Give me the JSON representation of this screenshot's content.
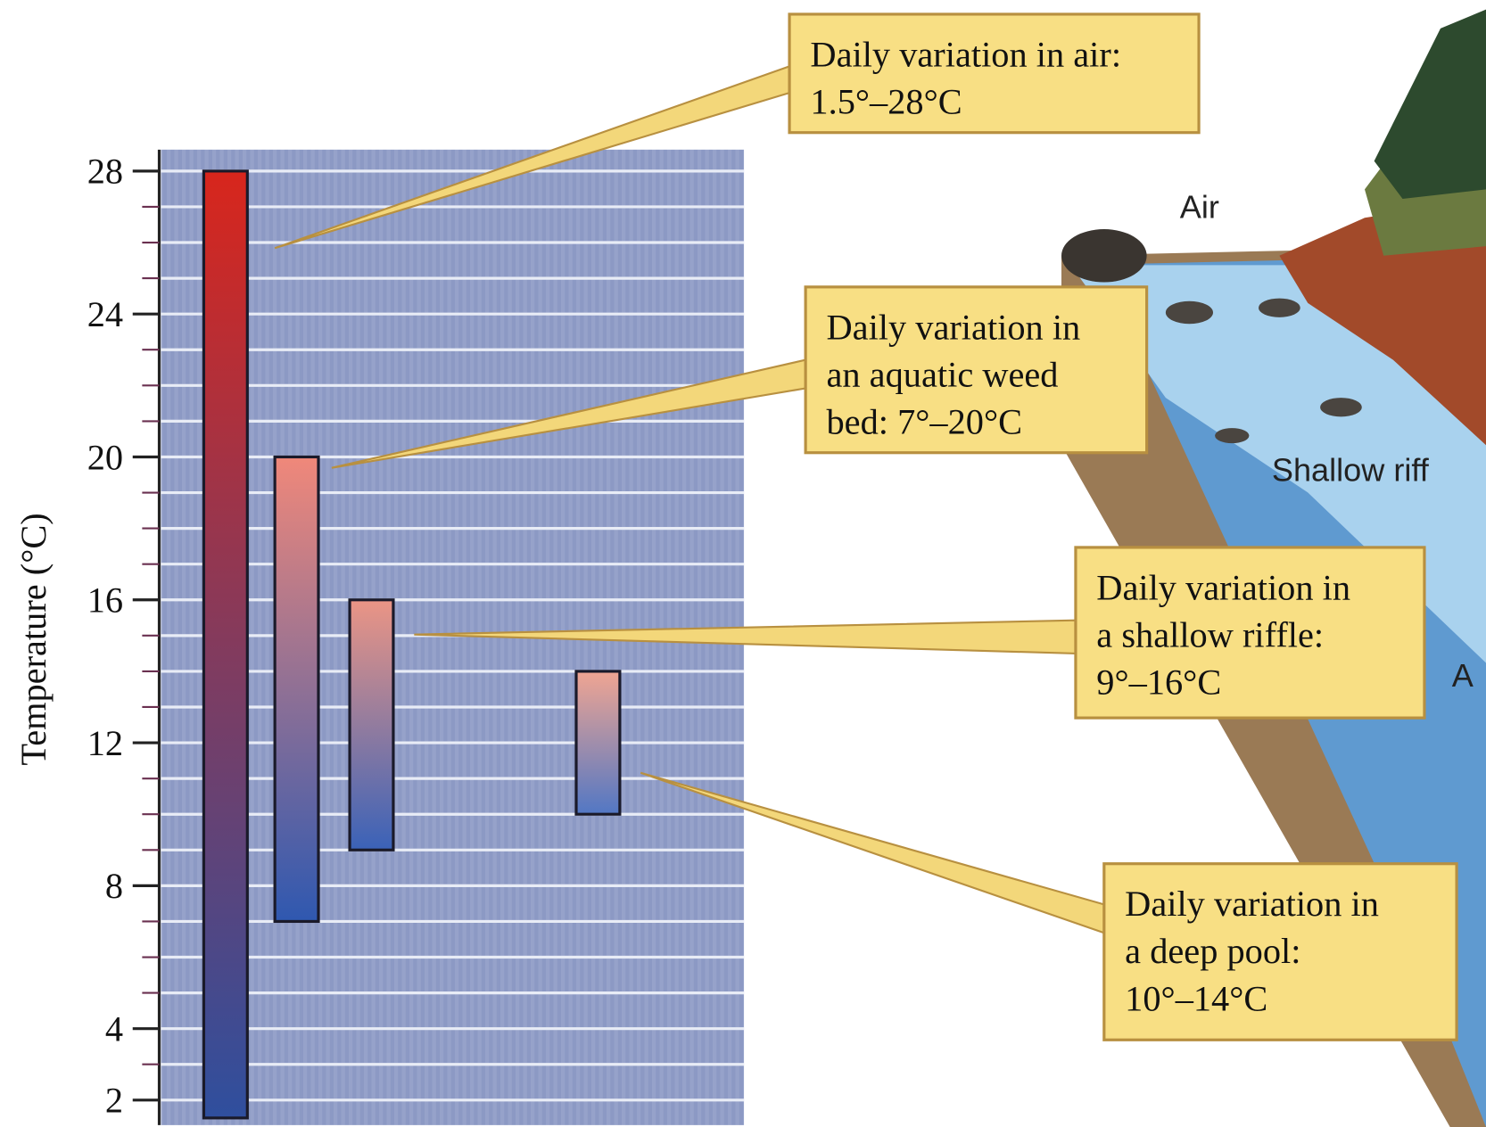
{
  "chart_data": {
    "type": "range_bar",
    "y_label": "Temperature  (°C)",
    "ylim": [
      1.3,
      28.6
    ],
    "yticks": [
      2,
      4,
      8,
      12,
      16,
      20,
      24,
      28
    ],
    "grid": true,
    "bars": [
      {
        "low": 1.5,
        "high": 28,
        "top_color": "#d8261c",
        "bottom_color": "#2f4f9e",
        "annotation": [
          "Daily variation in air:",
          "1.5°–28°C"
        ]
      },
      {
        "low": 7,
        "high": 20,
        "top_color": "#f0887a",
        "bottom_color": "#2f58b0",
        "annotation": [
          "Daily variation in",
          "an aquatic weed",
          "bed: 7°–20°C"
        ]
      },
      {
        "low": 9,
        "high": 16,
        "top_color": "#eb9585",
        "bottom_color": "#3a62b8",
        "annotation": [
          "Daily variation in",
          "a shallow riffle:",
          "9°–16°C"
        ]
      },
      {
        "low": 10,
        "high": 14,
        "top_color": "#f0a592",
        "bottom_color": "#5277c4",
        "annotation": [
          "Daily variation in",
          "a deep pool:",
          "10°–14°C"
        ]
      }
    ],
    "illustration_labels": [
      "Air",
      "Shallow riff",
      "A"
    ]
  }
}
